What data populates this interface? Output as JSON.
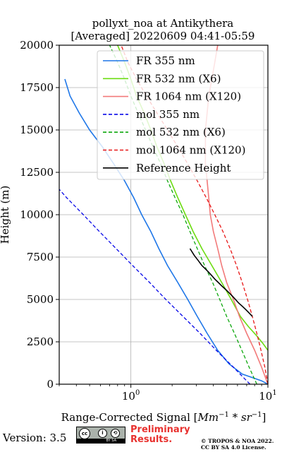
{
  "chart_data": {
    "type": "line",
    "title": "pollyxt_noa at Antikythera",
    "subtitle": "[Averaged] 20220609 04:41-05:59",
    "xlabel": "Range-Corrected Signal [Mm⁻¹ * sr⁻¹]",
    "xlabel_parts": [
      "Range-Corrected Signal [",
      "Mm",
      "−1",
      " * ",
      "sr",
      "−1",
      "]"
    ],
    "ylabel": "Height (m)",
    "xscale": "log",
    "xlim": [
      0.3,
      10
    ],
    "ylim": [
      0,
      20000
    ],
    "grid": true,
    "legend_position": "top-right",
    "x_major_ticks": [
      {
        "value": 1,
        "base": "10",
        "exp": "0"
      },
      {
        "value": 10,
        "base": "10",
        "exp": "1"
      }
    ],
    "y_ticks": [
      0,
      2500,
      5000,
      7500,
      10000,
      12500,
      15000,
      17500,
      20000
    ],
    "y_tick_labels": [
      "0",
      "2500",
      "5000",
      "7500",
      "10000",
      "12500",
      "15000",
      "17500",
      "20000"
    ],
    "reference_height": [
      4000,
      8000
    ],
    "series": [
      {
        "name": "FR 355 nm",
        "color": "#1f77e8",
        "style": "solid",
        "x": [
          10.0,
          9.0,
          6.5,
          5.2,
          4.3,
          3.6,
          3.05,
          2.6,
          2.2,
          1.85,
          1.6,
          1.4,
          1.2,
          1.05,
          0.9,
          0.75,
          0.62,
          0.5,
          0.42,
          0.36,
          0.33
        ],
        "y": [
          0,
          200,
          600,
          1200,
          2000,
          3000,
          4000,
          5000,
          6000,
          7000,
          8000,
          9000,
          10000,
          11000,
          12000,
          13000,
          14000,
          15000,
          16000,
          17000,
          18000
        ]
      },
      {
        "name": "FR 532 nm (X6)",
        "color": "#6ddc12",
        "style": "solid",
        "x": [
          10.0,
          9.2,
          8.2,
          7.2,
          6.3,
          5.4,
          4.6,
          3.9,
          3.3,
          2.85,
          2.5,
          2.2,
          1.95,
          1.75,
          1.55,
          1.4,
          1.25,
          1.1,
          1.0,
          0.9,
          0.8
        ],
        "y": [
          2000,
          2400,
          2900,
          3400,
          4000,
          5000,
          6000,
          7000,
          8000,
          9000,
          10000,
          11000,
          12000,
          13000,
          14000,
          15000,
          16000,
          17000,
          18000,
          19000,
          20000
        ]
      },
      {
        "name": "FR 1064 nm (X120)",
        "color": "#f27a7a",
        "style": "solid",
        "x": [
          10.0,
          9.0,
          8.0,
          7.0,
          6.2,
          5.6,
          5.0,
          4.6,
          4.3,
          4.0,
          3.8,
          3.7,
          3.6,
          3.5,
          3.5,
          3.5,
          3.6,
          3.7,
          3.9,
          4.1,
          4.3
        ],
        "y": [
          0,
          1000,
          2000,
          3000,
          4000,
          5000,
          6000,
          7000,
          8000,
          9000,
          10000,
          11000,
          12000,
          13000,
          14000,
          15000,
          16000,
          17000,
          18000,
          19000,
          20000
        ]
      },
      {
        "name": "mol 355 nm",
        "color": "#0a0ae8",
        "style": "dashed",
        "x": [
          7.4,
          5.6,
          4.2,
          3.2,
          2.4,
          1.8,
          1.37,
          1.03,
          0.78,
          0.59,
          0.45,
          0.34,
          0.3
        ],
        "y": [
          0,
          1000,
          2000,
          3000,
          4000,
          5000,
          6000,
          7000,
          8000,
          9000,
          10000,
          11000,
          11500
        ]
      },
      {
        "name": "mol 532 nm (X6)",
        "color": "#0ea80e",
        "style": "dashed",
        "x": [
          8.3,
          7.3,
          6.45,
          5.7,
          5.0,
          4.45,
          3.95,
          3.45,
          3.05,
          2.7,
          2.4,
          2.1,
          1.85,
          1.65,
          1.45,
          1.28,
          1.13,
          1.0,
          0.9,
          0.8,
          0.7
        ],
        "y": [
          0,
          1000,
          2000,
          3000,
          4000,
          5000,
          6000,
          7000,
          8000,
          9000,
          10000,
          11000,
          12000,
          13000,
          14000,
          15000,
          16000,
          17000,
          18000,
          19000,
          20000
        ]
      },
      {
        "name": "mol 1064 nm (X120)",
        "color": "#e81818",
        "style": "dashed",
        "x": [
          10.0,
          9.5,
          8.9,
          8.3,
          7.7,
          7.1,
          6.5,
          5.9,
          5.3,
          4.7,
          4.1,
          3.55,
          3.05,
          2.6,
          2.2,
          1.85,
          1.55,
          1.3,
          1.1,
          0.95,
          0.85
        ],
        "y": [
          0,
          1000,
          2000,
          3000,
          4000,
          5000,
          6000,
          7000,
          8000,
          9000,
          10000,
          11000,
          12000,
          13000,
          14000,
          15000,
          16000,
          17000,
          18000,
          19000,
          20000
        ]
      },
      {
        "name": "Reference Height",
        "color": "#000000",
        "style": "solid",
        "x": [
          7.7,
          7.3,
          6.9,
          6.5,
          6.1,
          5.8,
          5.5,
          5.2,
          4.9,
          4.6,
          4.35,
          4.1,
          3.9,
          3.7,
          3.5,
          3.3,
          3.1,
          2.9,
          2.7
        ],
        "y": [
          4000,
          4200,
          4400,
          4600,
          4800,
          5000,
          5200,
          5400,
          5600,
          5800,
          6000,
          6200,
          6400,
          6600,
          6800,
          7000,
          7300,
          7600,
          8000
        ]
      }
    ]
  },
  "footer": {
    "version": "Version: 3.5",
    "cc_strip": "BY   SA",
    "cc_cc": "cc",
    "cc_by": "i",
    "cc_sa": "⟲",
    "preliminary": [
      "Preliminary",
      "Results."
    ],
    "copyright": [
      "© TROPOS & NOA 2022.",
      "CC BY SA 4.0 License."
    ]
  }
}
